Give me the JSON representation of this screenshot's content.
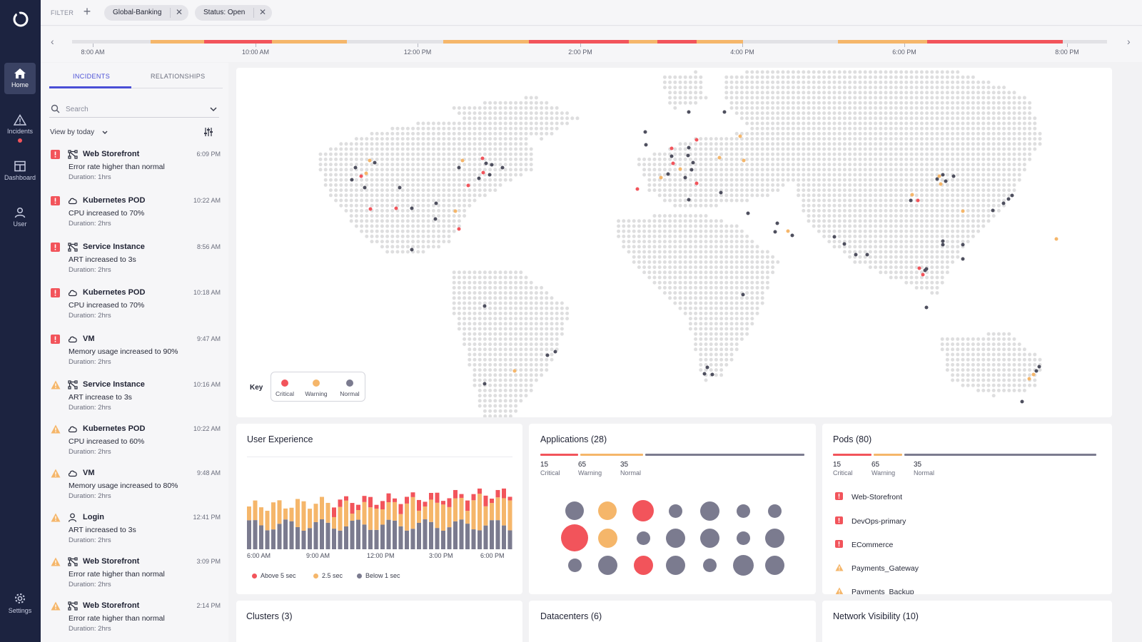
{
  "colors": {
    "critical": "#f2545b",
    "warning": "#f5b66a",
    "normal": "#7b7b8f",
    "accent": "#4a4fd6",
    "nav_bg": "#1c2340"
  },
  "nav": {
    "items": [
      {
        "label": "Home",
        "icon": "home-icon",
        "active": true
      },
      {
        "label": "Incidents",
        "icon": "warning-icon",
        "active": false
      },
      {
        "label": "Dashboard",
        "icon": "dashboard-icon",
        "active": false
      },
      {
        "label": "User",
        "icon": "user-icon",
        "active": false
      }
    ],
    "settings": {
      "label": "Settings",
      "icon": "gear-icon"
    }
  },
  "filter": {
    "label": "FILTER",
    "chips": [
      {
        "label": "Global-Banking"
      },
      {
        "label": "Status: Open"
      }
    ]
  },
  "timeline": {
    "labels": [
      "8:00 AM",
      "10:00 AM",
      "12:00 PM",
      "2:00 PM",
      "4:00 PM",
      "6:00 PM",
      "8:00 PM"
    ]
  },
  "panel": {
    "tabs": [
      {
        "label": "INCIDENTS"
      },
      {
        "label": "RELATIONSHIPS"
      }
    ],
    "search_placeholder": "Search",
    "view_by": "View by today",
    "incidents": [
      {
        "status": "critical",
        "type": "service-icon",
        "title": "Web Storefront",
        "time": "6:09 PM",
        "desc": "Error rate higher than normal",
        "duration": "Duration: 1hrs"
      },
      {
        "status": "critical",
        "type": "cloud-icon",
        "title": "Kubernetes POD",
        "time": "10:22 AM",
        "desc": "CPU increased to 70%",
        "duration": "Duration: 2hrs"
      },
      {
        "status": "critical",
        "type": "service-icon",
        "title": "Service Instance",
        "time": "8:56 AM",
        "desc": "ART increased to 3s",
        "duration": "Duration: 2hrs"
      },
      {
        "status": "critical",
        "type": "cloud-icon",
        "title": "Kubernetes POD",
        "time": "10:18 AM",
        "desc": "CPU increased to 70%",
        "duration": "Duration: 2hrs"
      },
      {
        "status": "critical",
        "type": "cloud-icon",
        "title": "VM",
        "time": "9:47 AM",
        "desc": "Memory usage increased to 90%",
        "duration": "Duration: 2hrs"
      },
      {
        "status": "warning",
        "type": "service-icon",
        "title": "Service Instance",
        "time": "10:16 AM",
        "desc": "ART increase to 3s",
        "duration": "Duration: 2hrs"
      },
      {
        "status": "warning",
        "type": "cloud-icon",
        "title": "Kubernetes POD",
        "time": "10:22 AM",
        "desc": "CPU increased to 60%",
        "duration": "Duration: 2hrs"
      },
      {
        "status": "warning",
        "type": "cloud-icon",
        "title": "VM",
        "time": "9:48 AM",
        "desc": "Memory usage increased to 80%",
        "duration": "Duration: 2hrs"
      },
      {
        "status": "warning",
        "type": "user-icon",
        "title": "Login",
        "time": "12:41 PM",
        "desc": "ART increased to 3s",
        "duration": "Duration: 2hrs"
      },
      {
        "status": "warning",
        "type": "service-icon",
        "title": "Web Storefront",
        "time": "3:09 PM",
        "desc": "Error rate higher than normal",
        "duration": "Duration: 2hrs"
      },
      {
        "status": "warning",
        "type": "service-icon",
        "title": "Web Storefront",
        "time": "2:14 PM",
        "desc": "Error rate higher than normal",
        "duration": "Duration: 2hrs"
      }
    ]
  },
  "map": {
    "key": {
      "title": "Key",
      "items": [
        {
          "label": "Critical"
        },
        {
          "label": "Warning"
        },
        {
          "label": "Normal"
        }
      ]
    }
  },
  "user_experience": {
    "title": "User Experience",
    "x_labels": [
      "6:00 AM",
      "9:00 AM",
      "12:00 PM",
      "3:00 PM",
      "6:00 PM"
    ],
    "legend": [
      {
        "label": "Above 5 sec"
      },
      {
        "label": "2.5 sec"
      },
      {
        "label": "Below 1 sec"
      }
    ]
  },
  "applications": {
    "title": "Applications (28)",
    "summary": [
      {
        "value": "15",
        "label": "Critical"
      },
      {
        "value": "65",
        "label": "Warning"
      },
      {
        "value": "35",
        "label": "Normal"
      }
    ]
  },
  "pods": {
    "title": "Pods (80)",
    "summary": [
      {
        "value": "15",
        "label": "Critical"
      },
      {
        "value": "65",
        "label": "Warning"
      },
      {
        "value": "35",
        "label": "Normal"
      }
    ],
    "items": [
      {
        "name": "Web-Storefront",
        "status": "critical"
      },
      {
        "name": "DevOps-primary",
        "status": "critical"
      },
      {
        "name": "ECommerce",
        "status": "critical"
      },
      {
        "name": "Payments_Gateway",
        "status": "warning"
      },
      {
        "name": "Payments_Backup",
        "status": "warning"
      }
    ]
  },
  "clusters": {
    "title": "Clusters (3)"
  },
  "datacenters": {
    "title": "Datacenters (6)"
  },
  "network": {
    "title": "Network Visibility (10)"
  }
}
